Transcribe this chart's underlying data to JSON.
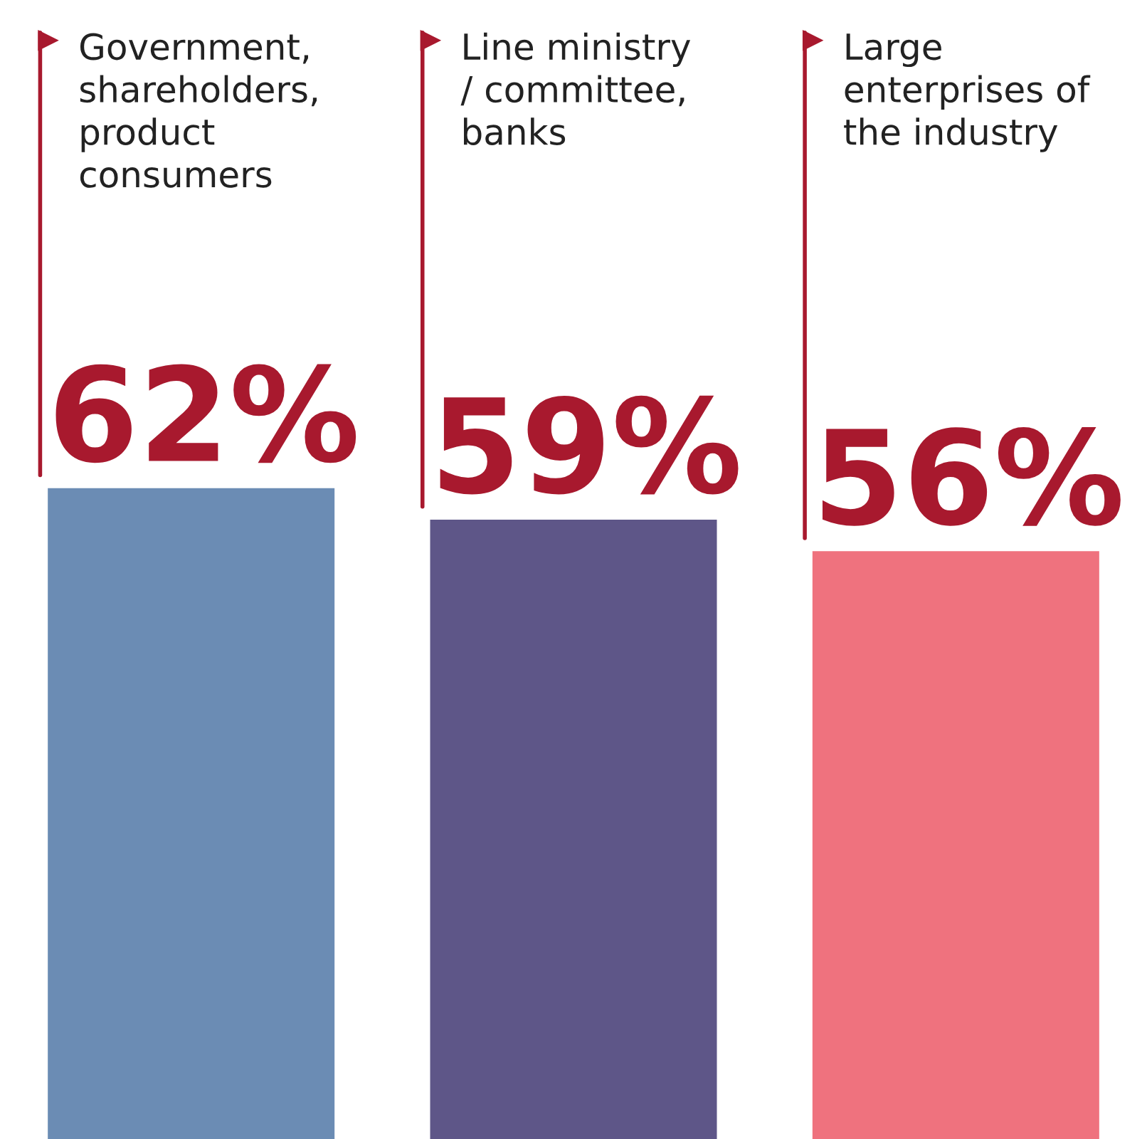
{
  "chart_data": {
    "type": "bar",
    "categories": [
      "Government,\nshareholders,\nproduct\nconsumers",
      "Line ministry\n/ committee,\nbanks",
      "Large\nenterprises of\nthe industry"
    ],
    "values": [
      62,
      59,
      56
    ],
    "value_labels": [
      "62%",
      "59%",
      "56%"
    ],
    "colors": [
      "#6b8cb4",
      "#5e5688",
      "#ef727e"
    ],
    "tick_labels": false
  }
}
